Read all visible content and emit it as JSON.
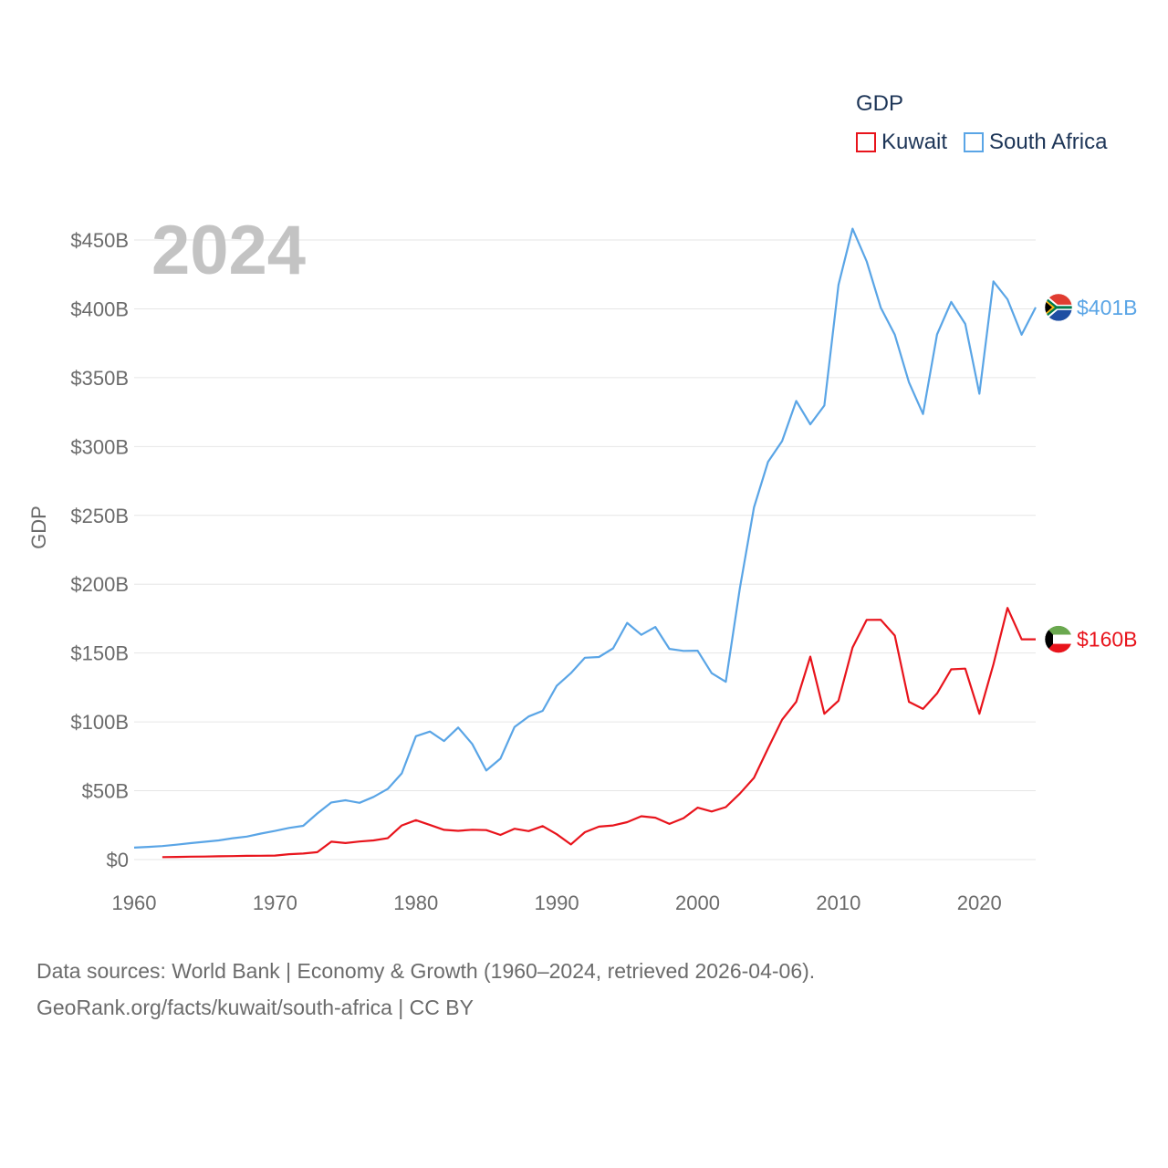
{
  "legend": {
    "title": "GDP",
    "items": [
      {
        "name": "Kuwait",
        "color": "#e8141c"
      },
      {
        "name": "South Africa",
        "color": "#5aa5e6"
      }
    ]
  },
  "source": {
    "line1": "Data sources: World Bank | Economy & Growth (1960–2024, retrieved 2026-04-06).",
    "line2": "GeoRank.org/facts/kuwait/south-africa | CC BY"
  },
  "chart_data": {
    "type": "line",
    "year_label": "2024",
    "ylabel": "GDP",
    "xlim": [
      1960,
      2024
    ],
    "ylim": [
      0,
      450
    ],
    "x_ticks": [
      1960,
      1970,
      1980,
      1990,
      2000,
      2010,
      2020
    ],
    "y_ticks": [
      {
        "value": 0,
        "label": "$0"
      },
      {
        "value": 50,
        "label": "$50B"
      },
      {
        "value": 100,
        "label": "$100B"
      },
      {
        "value": 150,
        "label": "$150B"
      },
      {
        "value": 200,
        "label": "$200B"
      },
      {
        "value": 250,
        "label": "$250B"
      },
      {
        "value": 300,
        "label": "$300B"
      },
      {
        "value": 350,
        "label": "$350B"
      },
      {
        "value": 400,
        "label": "$400B"
      },
      {
        "value": 450,
        "label": "$450B"
      }
    ],
    "grid": true,
    "series": [
      {
        "name": "South Africa",
        "color": "#5aa5e6",
        "end_label": "$401B",
        "flag": "south-africa-flag",
        "x": [
          1960,
          1961,
          1962,
          1963,
          1964,
          1965,
          1966,
          1967,
          1968,
          1969,
          1970,
          1971,
          1972,
          1973,
          1974,
          1975,
          1976,
          1977,
          1978,
          1979,
          1980,
          1981,
          1982,
          1983,
          1984,
          1985,
          1986,
          1987,
          1988,
          1989,
          1990,
          1991,
          1992,
          1993,
          1994,
          1995,
          1996,
          1997,
          1998,
          1999,
          2000,
          2001,
          2002,
          2003,
          2004,
          2005,
          2006,
          2007,
          2008,
          2009,
          2010,
          2011,
          2012,
          2013,
          2014,
          2015,
          2016,
          2017,
          2018,
          2019,
          2020,
          2021,
          2022,
          2023,
          2024
        ],
        "values": [
          8.7,
          9.2,
          9.8,
          10.8,
          11.9,
          12.9,
          13.9,
          15.5,
          16.7,
          18.9,
          20.8,
          23.0,
          24.5,
          33.5,
          41.5,
          43.1,
          41.2,
          45.5,
          51.3,
          62.6,
          89.6,
          93.0,
          86.1,
          95.9,
          84.0,
          64.7,
          73.3,
          96.2,
          103.9,
          108.0,
          126.2,
          135.4,
          146.6,
          147.1,
          153.4,
          171.9,
          163.2,
          168.9,
          153.0,
          151.6,
          151.7,
          135.4,
          129.1,
          197.0,
          255.8,
          288.9,
          303.9,
          333.1,
          316.1,
          329.8,
          417.4,
          458.2,
          434.4,
          400.9,
          381.2,
          346.7,
          323.6,
          381.4,
          405.0,
          389.0,
          338.3,
          419.9,
          406.9,
          381.2,
          401.0
        ]
      },
      {
        "name": "Kuwait",
        "color": "#e8141c",
        "end_label": "$160B",
        "flag": "kuwait-flag",
        "x": [
          1962,
          1963,
          1964,
          1965,
          1966,
          1967,
          1968,
          1969,
          1970,
          1971,
          1972,
          1973,
          1974,
          1975,
          1976,
          1977,
          1978,
          1979,
          1980,
          1981,
          1982,
          1983,
          1984,
          1985,
          1986,
          1987,
          1988,
          1989,
          1990,
          1991,
          1992,
          1993,
          1994,
          1995,
          1996,
          1997,
          1998,
          1999,
          2000,
          2001,
          2002,
          2003,
          2004,
          2005,
          2006,
          2007,
          2008,
          2009,
          2010,
          2011,
          2012,
          2013,
          2014,
          2015,
          2016,
          2017,
          2018,
          2019,
          2020,
          2021,
          2022,
          2023,
          2024
        ],
        "values": [
          1.8,
          1.9,
          2.1,
          2.2,
          2.4,
          2.5,
          2.7,
          2.8,
          2.9,
          3.9,
          4.4,
          5.4,
          13.0,
          12.0,
          13.1,
          13.9,
          15.5,
          24.8,
          28.6,
          25.1,
          21.6,
          20.9,
          21.7,
          21.4,
          17.9,
          22.4,
          20.7,
          24.3,
          18.4,
          11.0,
          19.9,
          23.9,
          24.8,
          27.2,
          31.5,
          30.4,
          25.9,
          30.1,
          37.7,
          34.9,
          38.1,
          47.9,
          59.4,
          80.8,
          101.6,
          114.6,
          147.4,
          105.9,
          115.4,
          154.0,
          174.1,
          174.2,
          162.7,
          114.6,
          109.4,
          120.7,
          138.2,
          138.7,
          105.9,
          141.8,
          182.8,
          160.0,
          160.0
        ]
      }
    ]
  }
}
